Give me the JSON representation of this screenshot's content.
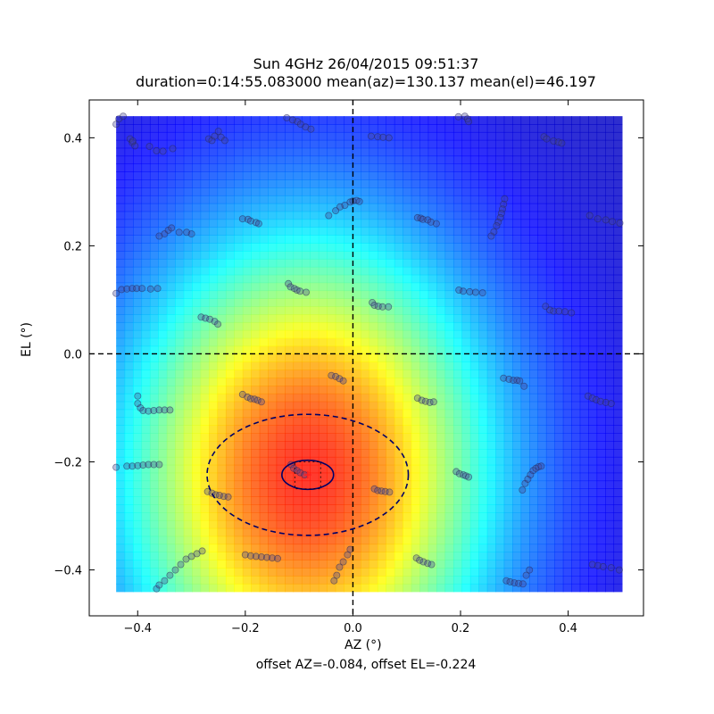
{
  "chart_data": {
    "type": "heatmap",
    "title": "Sun 4GHz 26/04/2015 09:51:37",
    "subtitle": "duration=0:14:55.083000 mean(az)=130.137 mean(el)=46.197",
    "xlabel": "AZ (°)",
    "ylabel": "EL (°)",
    "footer": "offset AZ=-0.084, offset EL=-0.224",
    "xlim": [
      -0.49,
      0.54
    ],
    "ylim": [
      -0.485,
      0.47
    ],
    "image_extent": {
      "az": [
        -0.44,
        0.5
      ],
      "el": [
        -0.44,
        0.44
      ]
    },
    "colormap": "jet",
    "grid": false,
    "x_ticks": [
      {
        "v": -0.4,
        "label": "−0.4"
      },
      {
        "v": -0.2,
        "label": "−0.2"
      },
      {
        "v": 0.0,
        "label": "0.0"
      },
      {
        "v": 0.2,
        "label": "0.2"
      },
      {
        "v": 0.4,
        "label": "0.4"
      }
    ],
    "y_ticks": [
      {
        "v": -0.4,
        "label": "−0.4"
      },
      {
        "v": -0.2,
        "label": "−0.2"
      },
      {
        "v": 0.0,
        "label": "0.0"
      },
      {
        "v": 0.2,
        "label": "0.2"
      },
      {
        "v": 0.4,
        "label": "0.4"
      }
    ],
    "beam": {
      "center_az": -0.084,
      "center_el": -0.224,
      "sigma_az": 0.245,
      "sigma_el": 0.32
    },
    "ellipses": [
      {
        "cx": -0.084,
        "cy": -0.224,
        "rx": 0.187,
        "ry": 0.112,
        "style": "dashed"
      },
      {
        "cx": -0.084,
        "cy": -0.224,
        "rx": 0.048,
        "ry": 0.027,
        "style": "solid"
      }
    ],
    "fitted_center": {
      "az": -0.084,
      "el": -0.224
    },
    "crosshair": {
      "az": 0.0,
      "el": 0.0
    },
    "marker_box": {
      "az": [
        -0.108,
        -0.06
      ],
      "el": [
        -0.25,
        -0.2
      ]
    },
    "scan_points": [
      {
        "x": -0.44,
        "y": 0.425
      },
      {
        "x": -0.435,
        "y": 0.435
      },
      {
        "x": -0.427,
        "y": 0.44
      },
      {
        "x": -0.414,
        "y": 0.398
      },
      {
        "x": -0.41,
        "y": 0.391
      },
      {
        "x": -0.405,
        "y": 0.385
      },
      {
        "x": -0.409,
        "y": 0.394
      },
      {
        "x": -0.378,
        "y": 0.384
      },
      {
        "x": -0.365,
        "y": 0.376
      },
      {
        "x": -0.353,
        "y": 0.375
      },
      {
        "x": -0.335,
        "y": 0.38
      },
      {
        "x": -0.268,
        "y": 0.398
      },
      {
        "x": -0.262,
        "y": 0.395
      },
      {
        "x": -0.257,
        "y": 0.403
      },
      {
        "x": -0.25,
        "y": 0.412
      },
      {
        "x": -0.245,
        "y": 0.401
      },
      {
        "x": -0.238,
        "y": 0.395
      },
      {
        "x": -0.123,
        "y": 0.437
      },
      {
        "x": -0.112,
        "y": 0.433
      },
      {
        "x": -0.103,
        "y": 0.43
      },
      {
        "x": -0.097,
        "y": 0.425
      },
      {
        "x": -0.088,
        "y": 0.42
      },
      {
        "x": -0.078,
        "y": 0.416
      },
      {
        "x": 0.034,
        "y": 0.403
      },
      {
        "x": 0.046,
        "y": 0.402
      },
      {
        "x": 0.056,
        "y": 0.401
      },
      {
        "x": 0.067,
        "y": 0.4
      },
      {
        "x": 0.196,
        "y": 0.439
      },
      {
        "x": 0.208,
        "y": 0.44
      },
      {
        "x": 0.213,
        "y": 0.435
      },
      {
        "x": 0.215,
        "y": 0.43
      },
      {
        "x": 0.355,
        "y": 0.402
      },
      {
        "x": 0.36,
        "y": 0.398
      },
      {
        "x": 0.373,
        "y": 0.394
      },
      {
        "x": 0.382,
        "y": 0.392
      },
      {
        "x": 0.388,
        "y": 0.39
      },
      {
        "x": -0.36,
        "y": 0.218
      },
      {
        "x": -0.35,
        "y": 0.222
      },
      {
        "x": -0.343,
        "y": 0.229
      },
      {
        "x": -0.337,
        "y": 0.233
      },
      {
        "x": -0.323,
        "y": 0.225
      },
      {
        "x": -0.309,
        "y": 0.225
      },
      {
        "x": -0.3,
        "y": 0.222
      },
      {
        "x": -0.205,
        "y": 0.25
      },
      {
        "x": -0.195,
        "y": 0.249
      },
      {
        "x": -0.19,
        "y": 0.246
      },
      {
        "x": -0.18,
        "y": 0.243
      },
      {
        "x": -0.175,
        "y": 0.241
      },
      {
        "x": -0.045,
        "y": 0.256
      },
      {
        "x": -0.032,
        "y": 0.265
      },
      {
        "x": -0.024,
        "y": 0.272
      },
      {
        "x": -0.015,
        "y": 0.275
      },
      {
        "x": -0.005,
        "y": 0.281
      },
      {
        "x": 0.007,
        "y": 0.284
      },
      {
        "x": 0.012,
        "y": 0.282
      },
      {
        "x": 0.0,
        "y": 0.283
      },
      {
        "x": 0.12,
        "y": 0.252
      },
      {
        "x": 0.126,
        "y": 0.251
      },
      {
        "x": 0.13,
        "y": 0.249
      },
      {
        "x": 0.139,
        "y": 0.248
      },
      {
        "x": 0.145,
        "y": 0.244
      },
      {
        "x": 0.155,
        "y": 0.241
      },
      {
        "x": 0.282,
        "y": 0.287
      },
      {
        "x": 0.28,
        "y": 0.277
      },
      {
        "x": 0.278,
        "y": 0.268
      },
      {
        "x": 0.276,
        "y": 0.26
      },
      {
        "x": 0.274,
        "y": 0.252
      },
      {
        "x": 0.27,
        "y": 0.244
      },
      {
        "x": 0.267,
        "y": 0.237
      },
      {
        "x": 0.262,
        "y": 0.226
      },
      {
        "x": 0.257,
        "y": 0.218
      },
      {
        "x": 0.44,
        "y": 0.256
      },
      {
        "x": 0.455,
        "y": 0.25
      },
      {
        "x": 0.47,
        "y": 0.248
      },
      {
        "x": 0.482,
        "y": 0.245
      },
      {
        "x": 0.496,
        "y": 0.242
      },
      {
        "x": -0.44,
        "y": 0.112
      },
      {
        "x": -0.43,
        "y": 0.119
      },
      {
        "x": -0.42,
        "y": 0.12
      },
      {
        "x": -0.41,
        "y": 0.121
      },
      {
        "x": -0.402,
        "y": 0.121
      },
      {
        "x": -0.392,
        "y": 0.121
      },
      {
        "x": -0.376,
        "y": 0.12
      },
      {
        "x": -0.363,
        "y": 0.121
      },
      {
        "x": -0.282,
        "y": 0.068
      },
      {
        "x": -0.274,
        "y": 0.066
      },
      {
        "x": -0.266,
        "y": 0.064
      },
      {
        "x": -0.257,
        "y": 0.06
      },
      {
        "x": -0.251,
        "y": 0.055
      },
      {
        "x": -0.12,
        "y": 0.13
      },
      {
        "x": -0.116,
        "y": 0.124
      },
      {
        "x": -0.109,
        "y": 0.121
      },
      {
        "x": -0.104,
        "y": 0.118
      },
      {
        "x": -0.098,
        "y": 0.116
      },
      {
        "x": -0.087,
        "y": 0.114
      },
      {
        "x": 0.036,
        "y": 0.095
      },
      {
        "x": 0.04,
        "y": 0.09
      },
      {
        "x": 0.047,
        "y": 0.088
      },
      {
        "x": 0.055,
        "y": 0.087
      },
      {
        "x": 0.066,
        "y": 0.087
      },
      {
        "x": 0.197,
        "y": 0.118
      },
      {
        "x": 0.205,
        "y": 0.116
      },
      {
        "x": 0.217,
        "y": 0.115
      },
      {
        "x": 0.228,
        "y": 0.114
      },
      {
        "x": 0.241,
        "y": 0.113
      },
      {
        "x": 0.358,
        "y": 0.088
      },
      {
        "x": 0.366,
        "y": 0.081
      },
      {
        "x": 0.373,
        "y": 0.079
      },
      {
        "x": 0.383,
        "y": 0.079
      },
      {
        "x": 0.394,
        "y": 0.078
      },
      {
        "x": 0.406,
        "y": 0.076
      },
      {
        "x": -0.4,
        "y": -0.078
      },
      {
        "x": -0.4,
        "y": -0.092
      },
      {
        "x": -0.395,
        "y": -0.1
      },
      {
        "x": -0.39,
        "y": -0.105
      },
      {
        "x": -0.38,
        "y": -0.106
      },
      {
        "x": -0.37,
        "y": -0.105
      },
      {
        "x": -0.36,
        "y": -0.104
      },
      {
        "x": -0.35,
        "y": -0.104
      },
      {
        "x": -0.34,
        "y": -0.104
      },
      {
        "x": -0.205,
        "y": -0.075
      },
      {
        "x": -0.196,
        "y": -0.08
      },
      {
        "x": -0.19,
        "y": -0.083
      },
      {
        "x": -0.183,
        "y": -0.084
      },
      {
        "x": -0.177,
        "y": -0.086
      },
      {
        "x": -0.17,
        "y": -0.089
      },
      {
        "x": -0.04,
        "y": -0.04
      },
      {
        "x": -0.032,
        "y": -0.042
      },
      {
        "x": -0.025,
        "y": -0.046
      },
      {
        "x": -0.018,
        "y": -0.05
      },
      {
        "x": 0.12,
        "y": -0.082
      },
      {
        "x": 0.128,
        "y": -0.086
      },
      {
        "x": 0.135,
        "y": -0.088
      },
      {
        "x": 0.143,
        "y": -0.09
      },
      {
        "x": 0.15,
        "y": -0.089
      },
      {
        "x": 0.28,
        "y": -0.045
      },
      {
        "x": 0.29,
        "y": -0.047
      },
      {
        "x": 0.298,
        "y": -0.049
      },
      {
        "x": 0.305,
        "y": -0.049
      },
      {
        "x": 0.31,
        "y": -0.05
      },
      {
        "x": 0.318,
        "y": -0.06
      },
      {
        "x": 0.437,
        "y": -0.078
      },
      {
        "x": 0.445,
        "y": -0.082
      },
      {
        "x": 0.452,
        "y": -0.085
      },
      {
        "x": 0.46,
        "y": -0.088
      },
      {
        "x": 0.47,
        "y": -0.09
      },
      {
        "x": 0.48,
        "y": -0.092
      },
      {
        "x": -0.44,
        "y": -0.21
      },
      {
        "x": -0.42,
        "y": -0.208
      },
      {
        "x": -0.41,
        "y": -0.208
      },
      {
        "x": -0.4,
        "y": -0.207
      },
      {
        "x": -0.39,
        "y": -0.206
      },
      {
        "x": -0.38,
        "y": -0.205
      },
      {
        "x": -0.37,
        "y": -0.205
      },
      {
        "x": -0.36,
        "y": -0.205
      },
      {
        "x": -0.27,
        "y": -0.255
      },
      {
        "x": -0.262,
        "y": -0.258
      },
      {
        "x": -0.255,
        "y": -0.261
      },
      {
        "x": -0.248,
        "y": -0.262
      },
      {
        "x": -0.24,
        "y": -0.264
      },
      {
        "x": -0.232,
        "y": -0.265
      },
      {
        "x": -0.115,
        "y": -0.205
      },
      {
        "x": -0.11,
        "y": -0.212
      },
      {
        "x": -0.104,
        "y": -0.216
      },
      {
        "x": -0.098,
        "y": -0.22
      },
      {
        "x": -0.09,
        "y": -0.224
      },
      {
        "x": 0.04,
        "y": -0.25
      },
      {
        "x": 0.046,
        "y": -0.253
      },
      {
        "x": 0.053,
        "y": -0.254
      },
      {
        "x": 0.06,
        "y": -0.255
      },
      {
        "x": 0.068,
        "y": -0.256
      },
      {
        "x": 0.192,
        "y": -0.218
      },
      {
        "x": 0.198,
        "y": -0.222
      },
      {
        "x": 0.205,
        "y": -0.224
      },
      {
        "x": 0.21,
        "y": -0.226
      },
      {
        "x": 0.215,
        "y": -0.228
      },
      {
        "x": 0.315,
        "y": -0.252
      },
      {
        "x": 0.32,
        "y": -0.24
      },
      {
        "x": 0.325,
        "y": -0.232
      },
      {
        "x": 0.33,
        "y": -0.224
      },
      {
        "x": 0.335,
        "y": -0.216
      },
      {
        "x": 0.34,
        "y": -0.212
      },
      {
        "x": 0.345,
        "y": -0.209
      },
      {
        "x": 0.35,
        "y": -0.208
      },
      {
        "x": -0.365,
        "y": -0.435
      },
      {
        "x": -0.36,
        "y": -0.428
      },
      {
        "x": -0.35,
        "y": -0.42
      },
      {
        "x": -0.34,
        "y": -0.41
      },
      {
        "x": -0.33,
        "y": -0.4
      },
      {
        "x": -0.32,
        "y": -0.39
      },
      {
        "x": -0.31,
        "y": -0.38
      },
      {
        "x": -0.3,
        "y": -0.375
      },
      {
        "x": -0.29,
        "y": -0.37
      },
      {
        "x": -0.28,
        "y": -0.365
      },
      {
        "x": -0.2,
        "y": -0.372
      },
      {
        "x": -0.19,
        "y": -0.374
      },
      {
        "x": -0.18,
        "y": -0.375
      },
      {
        "x": -0.17,
        "y": -0.376
      },
      {
        "x": -0.16,
        "y": -0.377
      },
      {
        "x": -0.15,
        "y": -0.378
      },
      {
        "x": -0.14,
        "y": -0.379
      },
      {
        "x": -0.035,
        "y": -0.42
      },
      {
        "x": -0.03,
        "y": -0.41
      },
      {
        "x": -0.025,
        "y": -0.395
      },
      {
        "x": -0.018,
        "y": -0.385
      },
      {
        "x": -0.01,
        "y": -0.372
      },
      {
        "x": -0.005,
        "y": -0.362
      },
      {
        "x": 0.118,
        "y": -0.378
      },
      {
        "x": 0.124,
        "y": -0.382
      },
      {
        "x": 0.131,
        "y": -0.385
      },
      {
        "x": 0.139,
        "y": -0.388
      },
      {
        "x": 0.146,
        "y": -0.39
      },
      {
        "x": 0.285,
        "y": -0.42
      },
      {
        "x": 0.292,
        "y": -0.422
      },
      {
        "x": 0.3,
        "y": -0.424
      },
      {
        "x": 0.308,
        "y": -0.425
      },
      {
        "x": 0.316,
        "y": -0.426
      },
      {
        "x": 0.322,
        "y": -0.41
      },
      {
        "x": 0.328,
        "y": -0.4
      },
      {
        "x": 0.445,
        "y": -0.39
      },
      {
        "x": 0.455,
        "y": -0.392
      },
      {
        "x": 0.465,
        "y": -0.394
      },
      {
        "x": 0.48,
        "y": -0.396
      },
      {
        "x": 0.495,
        "y": -0.4
      }
    ]
  }
}
